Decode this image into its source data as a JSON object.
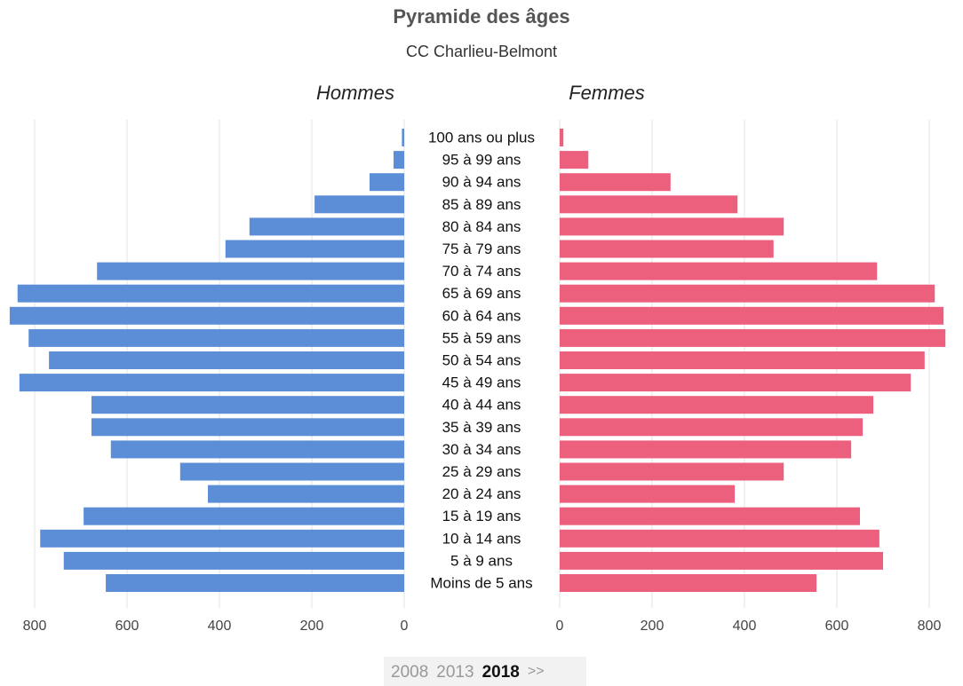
{
  "chart_data": {
    "type": "pyramid",
    "title": "Pyramide des âges",
    "subtitle": "CC Charlieu-Belmont",
    "categories": [
      "100 ans ou plus",
      "95 à 99 ans",
      "90 à 94 ans",
      "85 à 89 ans",
      "80 à 84 ans",
      "75 à 79 ans",
      "70 à 74 ans",
      "65 à 69 ans",
      "60 à 64 ans",
      "55 à 59 ans",
      "50 à 54 ans",
      "45 à 49 ans",
      "40 à 44 ans",
      "35 à 39 ans",
      "30 à 34 ans",
      "25 à 29 ans",
      "20 à 24 ans",
      "15 à 19 ans",
      "10 à 14 ans",
      "5 à 9 ans",
      "Moins de 5 ans"
    ],
    "series": [
      {
        "name": "Hommes",
        "color": "#5b8ed6",
        "values": [
          5,
          23,
          75,
          194,
          335,
          387,
          665,
          837,
          854,
          813,
          769,
          833,
          677,
          677,
          635,
          485,
          425,
          694,
          788,
          737,
          646
        ]
      },
      {
        "name": "Femmes",
        "color": "#ec5f7d",
        "values": [
          8,
          62,
          240,
          385,
          485,
          463,
          687,
          812,
          831,
          835,
          790,
          760,
          679,
          656,
          631,
          485,
          379,
          650,
          692,
          700,
          556
        ]
      }
    ],
    "xlim": [
      0,
      855
    ],
    "xticks": [
      0,
      200,
      400,
      600,
      800
    ],
    "grid": true
  },
  "periods": {
    "years": [
      {
        "year": 2008
      },
      {
        "year": 2013
      },
      {
        "year": 2018,
        "active": true
      }
    ],
    "next": ">>"
  }
}
